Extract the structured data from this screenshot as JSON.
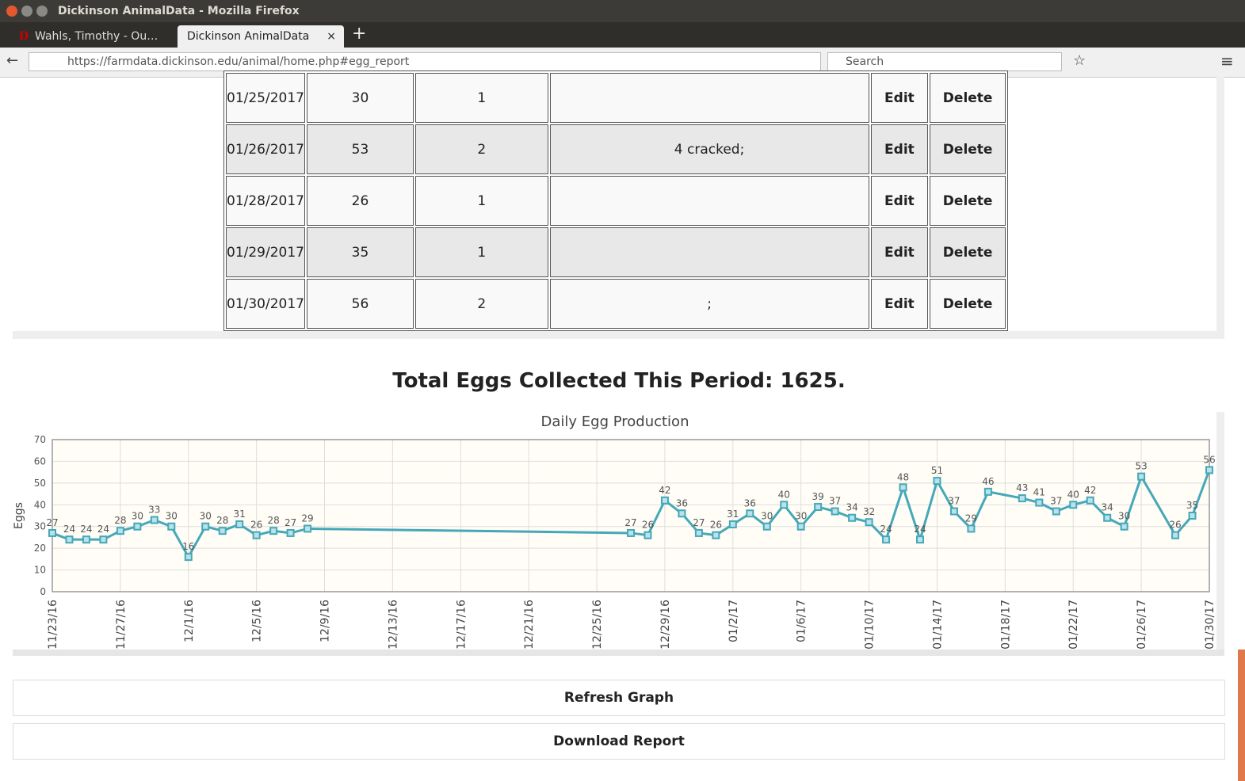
{
  "browser": {
    "window_title": "Dickinson AnimalData - Mozilla Firefox",
    "tabs": [
      "Wahls, Timothy - Ou…",
      "Dickinson AnimalData"
    ],
    "url": "https://farmdata.dickinson.edu/animal/home.php#egg_report",
    "search_placeholder": "Search"
  },
  "table": {
    "edit_label": "Edit",
    "delete_label": "Delete",
    "rows": [
      {
        "date": "01/25/2017",
        "eggs": 30,
        "count": 1
      },
      {
        "date": "01/26/2017",
        "eggs": 53,
        "count": 2,
        "comment": "4 cracked;"
      },
      {
        "date": "01/28/2017",
        "eggs": 26,
        "count": 1
      },
      {
        "date": "01/29/2017",
        "eggs": 35,
        "count": 1
      },
      {
        "date": "01/30/2017",
        "eggs": 56,
        "count": 2,
        "comment": ";"
      }
    ]
  },
  "total_heading": "Total Eggs Collected This Period: 1625.",
  "chart_data": {
    "type": "line",
    "title": "Daily Egg Production",
    "y_label": "Eggs",
    "color": "#45a8b9",
    "grid": true,
    "x": [
      "11/23/16",
      "11/24/16",
      "11/25/16",
      "11/26/16",
      "11/27/16",
      "11/28/16",
      "11/29/16",
      "11/30/16",
      "12/1/16",
      "12/2/16",
      "12/3/16",
      "12/4/16",
      "12/5/16",
      "12/6/16",
      "12/7/16",
      "12/8/16",
      "12/27/16",
      "12/28/16",
      "12/29/16",
      "12/30/16",
      "12/31/16",
      "01/1/17",
      "01/2/17",
      "01/3/17",
      "01/4/17",
      "01/5/17",
      "01/6/17",
      "01/7/17",
      "01/8/17",
      "01/9/17",
      "01/10/17",
      "01/11/17",
      "01/12/17",
      "01/13/17",
      "01/14/17",
      "01/15/17",
      "01/16/17",
      "01/17/17",
      "01/19/17",
      "01/20/17",
      "01/21/17",
      "01/22/17",
      "01/23/17",
      "01/24/17",
      "01/25/17",
      "01/26/17",
      "01/28/17",
      "01/29/17",
      "01/30/17"
    ],
    "values": [
      27,
      24,
      24,
      24,
      28,
      30,
      33,
      30,
      16,
      30,
      28,
      31,
      26,
      28,
      27,
      29,
      27,
      26,
      42,
      36,
      27,
      26,
      31,
      36,
      30,
      40,
      30,
      39,
      37,
      34,
      32,
      24,
      48,
      24,
      51,
      37,
      29,
      46,
      43,
      41,
      37,
      40,
      42,
      34,
      30,
      53,
      26,
      35,
      56
    ],
    "xlim": [
      "11/23/16",
      "01/30/17"
    ],
    "xticks": [
      "11/23/16",
      "11/27/16",
      "12/1/16",
      "12/5/16",
      "12/9/16",
      "12/13/16",
      "12/17/16",
      "12/21/16",
      "12/25/16",
      "12/29/16",
      "01/2/17",
      "01/6/17",
      "01/10/17",
      "01/14/17",
      "01/18/17",
      "01/22/17",
      "01/26/17",
      "01/30/17"
    ],
    "ylim": [
      0,
      70
    ],
    "yticks": [
      0,
      10,
      20,
      30,
      40,
      50,
      60,
      70
    ]
  },
  "buttons": [
    "Refresh Graph",
    "Download Report"
  ]
}
